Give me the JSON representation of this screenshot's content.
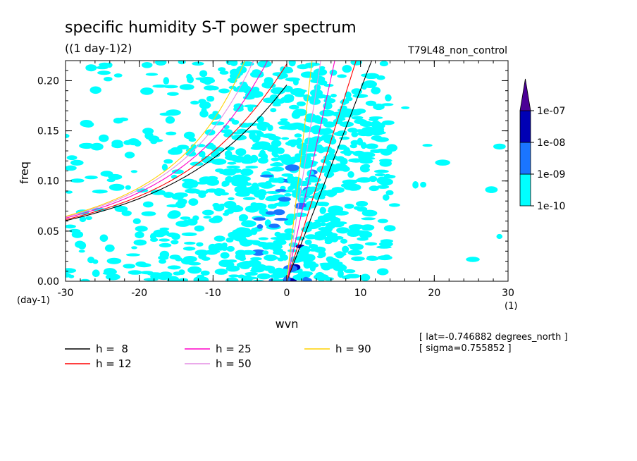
{
  "chart_data": {
    "type": "heatmap",
    "title": "specific humidity S-T power spectrum",
    "subtitle": "((1 day-1)2)",
    "experiment_label": "T79L48_non_control",
    "xlabel": "wvn",
    "ylabel": "freq",
    "x_unit": "(1)",
    "y_unit": "(day-1)",
    "xlim": [
      -30,
      30
    ],
    "ylim": [
      0,
      0.22
    ],
    "x_ticks": [
      -30,
      -20,
      -10,
      0,
      10,
      20,
      30
    ],
    "x_tick_labels": [
      "-30",
      "-20",
      "-10",
      "0",
      "10",
      "20",
      "30"
    ],
    "y_ticks": [
      0.0,
      0.05,
      0.1,
      0.15,
      0.2
    ],
    "y_tick_labels": [
      "0.00",
      "0.05",
      "0.10",
      "0.15",
      "0.20"
    ],
    "colorbar": {
      "levels": [
        "1e-10",
        "1e-09",
        "1e-08",
        "1e-07"
      ],
      "colors": [
        "#00ffff",
        "#1a75ff",
        "#0000b4",
        "#4b0096"
      ]
    },
    "series": [
      {
        "name": "h =  8",
        "color": "#000000",
        "h": 8
      },
      {
        "name": "h = 12",
        "color": "#ff0000",
        "h": 12
      },
      {
        "name": "h = 25",
        "color": "#ff00c8",
        "h": 25
      },
      {
        "name": "h = 50",
        "color": "#e48ee4",
        "h": 50
      },
      {
        "name": "h = 90",
        "color": "#ffd200",
        "h": 90
      }
    ],
    "annotations": [
      "[ lat=-0.746882 degrees_north ]",
      "[ sigma=0.755852 ]"
    ]
  }
}
